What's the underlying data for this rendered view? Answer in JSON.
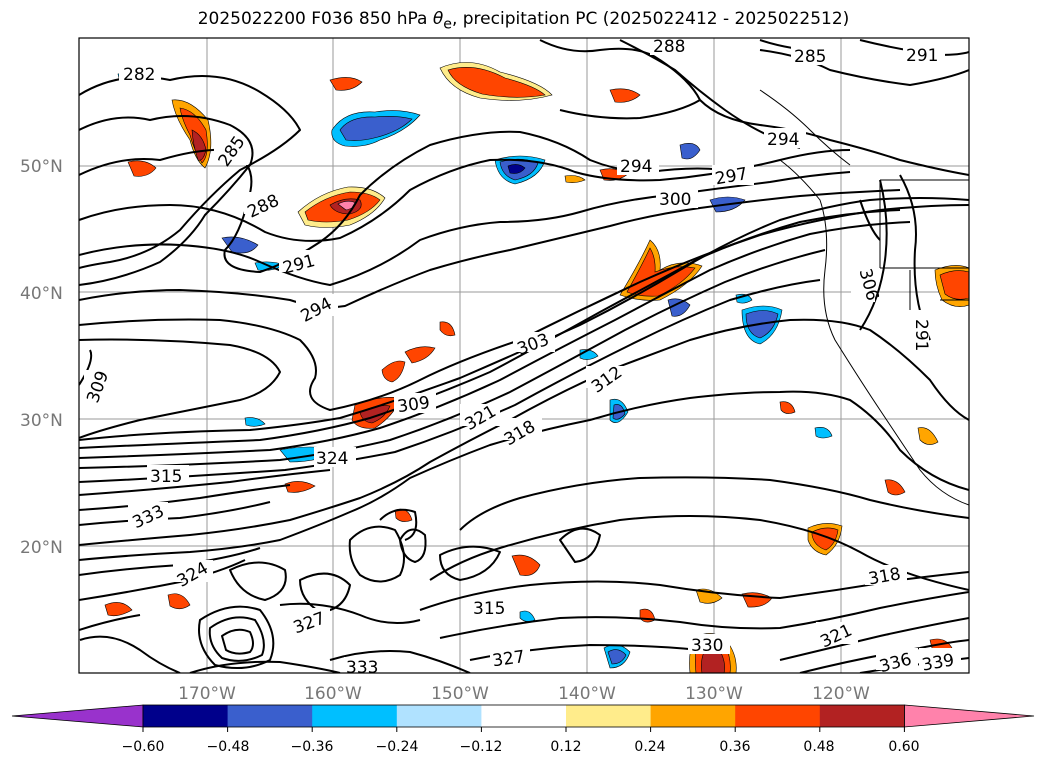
{
  "title": {
    "prefix": "2025022200 F036 850 hPa ",
    "theta": "θ",
    "sub": "e",
    "suffix": ", precipitation PC (2025022412 - 2025022512)"
  },
  "axes": {
    "lat_ticks": [
      "50°N",
      "40°N",
      "30°N",
      "20°N"
    ],
    "lon_ticks": [
      "170°W",
      "160°W",
      "150°W",
      "140°W",
      "130°W",
      "120°W"
    ]
  },
  "contour_labels": [
    "282",
    "285",
    "288",
    "291",
    "294",
    "294",
    "294",
    "297",
    "300",
    "303",
    "306",
    "309",
    "309",
    "312",
    "315",
    "315",
    "318",
    "318",
    "321",
    "321",
    "324",
    "324",
    "327",
    "327",
    "330",
    "333",
    "333",
    "336",
    "339",
    "288",
    "291",
    "285",
    "291"
  ],
  "colorbar": {
    "ticks": [
      "−0.60",
      "−0.48",
      "−0.36",
      "−0.24",
      "−0.12",
      "0.12",
      "0.24",
      "0.36",
      "0.48",
      "0.60"
    ],
    "colors": [
      "#9932cc",
      "#00008b",
      "#3a5fcd",
      "#00bfff",
      "#b0e2ff",
      "#ffffff",
      "#ffec8b",
      "#ffa500",
      "#ff4500",
      "#b22222",
      "#ff82ab"
    ]
  },
  "fills": {
    "neg_light": "#b0e2ff",
    "neg_mid": "#00bfff",
    "neg_strong": "#3a5fcd",
    "neg_dark": "#00008b",
    "pos_light": "#ffec8b",
    "pos_mid": "#ffa500",
    "pos_strong": "#ff4500",
    "pos_dark": "#b22222",
    "pos_max": "#ff82ab"
  }
}
